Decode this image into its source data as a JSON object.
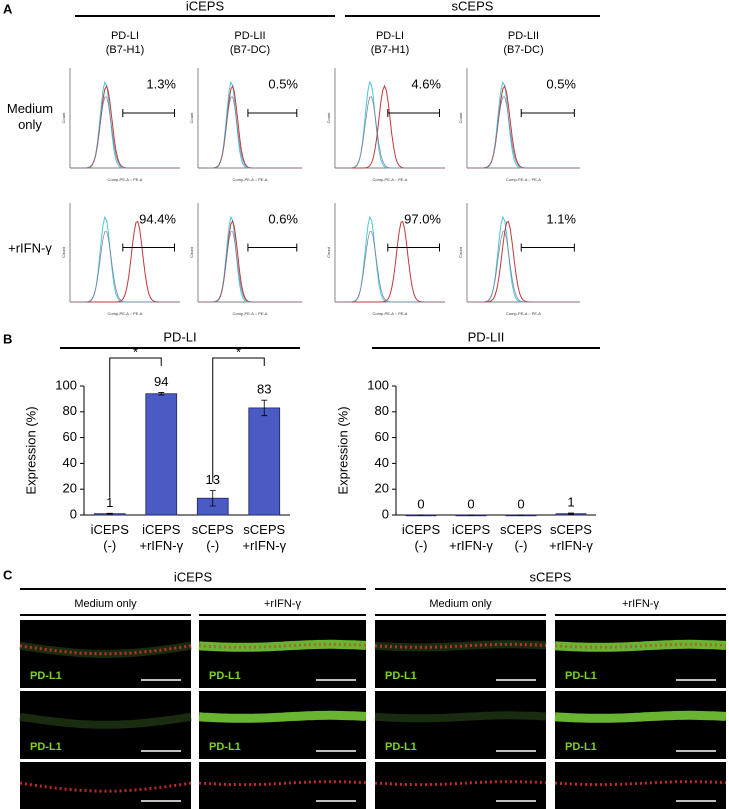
{
  "panel_a": {
    "label": "A",
    "groups": [
      {
        "name": "iCEPS",
        "columns": [
          {
            "title": "PD-LI",
            "subtitle": "(B7-H1)"
          },
          {
            "title": "PD-LII",
            "subtitle": "(B7-DC)"
          }
        ]
      },
      {
        "name": "sCEPS",
        "columns": [
          {
            "title": "PD-LI",
            "subtitle": "(B7-H1)"
          },
          {
            "title": "PD-LII",
            "subtitle": "(B7-DC)"
          }
        ]
      }
    ],
    "rows": [
      {
        "label": "Medium only",
        "percents": [
          "1.3%",
          "0.5%",
          "4.6%",
          "0.5%"
        ]
      },
      {
        "label": "+rIFN-γ",
        "percents": [
          "94.4%",
          "0.6%",
          "97.0%",
          "1.1%"
        ]
      }
    ],
    "x_axis_label": "Comp-PE-A :: PE-A",
    "y_axis_label": "Count"
  },
  "panel_b": {
    "label": "B"
  },
  "chart_data": [
    {
      "type": "bar",
      "title": "PD-LI",
      "ylabel": "Expression (%)",
      "categories": [
        "iCEPS (-)",
        "iCEPS +rIFN-γ",
        "sCEPS (-)",
        "sCEPS +rIFN-γ"
      ],
      "values": [
        1,
        94,
        13,
        83
      ],
      "errors": [
        0.3,
        1,
        6,
        6
      ],
      "color": "#4a5bc4",
      "ylim": [
        0,
        100
      ],
      "yticks": [
        0,
        20,
        40,
        60,
        80,
        100
      ],
      "annotations": [
        "*",
        "*"
      ]
    },
    {
      "type": "bar",
      "title": "PD-LII",
      "ylabel": "Expression (%)",
      "categories": [
        "iCEPS (-)",
        "iCEPS +rIFN-γ",
        "sCEPS (-)",
        "sCEPS +rIFN-γ"
      ],
      "values": [
        0,
        0,
        0,
        1
      ],
      "errors": [
        0,
        0,
        0,
        0.5
      ],
      "color": "#4a5bc4",
      "ylim": [
        0,
        100
      ],
      "yticks": [
        0,
        20,
        40,
        60,
        80,
        100
      ],
      "annotations": []
    }
  ],
  "panel_c": {
    "label": "C",
    "groups": [
      "iCEPS",
      "sCEPS"
    ],
    "columns": [
      "Medium only",
      "+rIFN-γ",
      "Medium only",
      "+rIFN-γ"
    ],
    "image_label": "PD-L1"
  }
}
